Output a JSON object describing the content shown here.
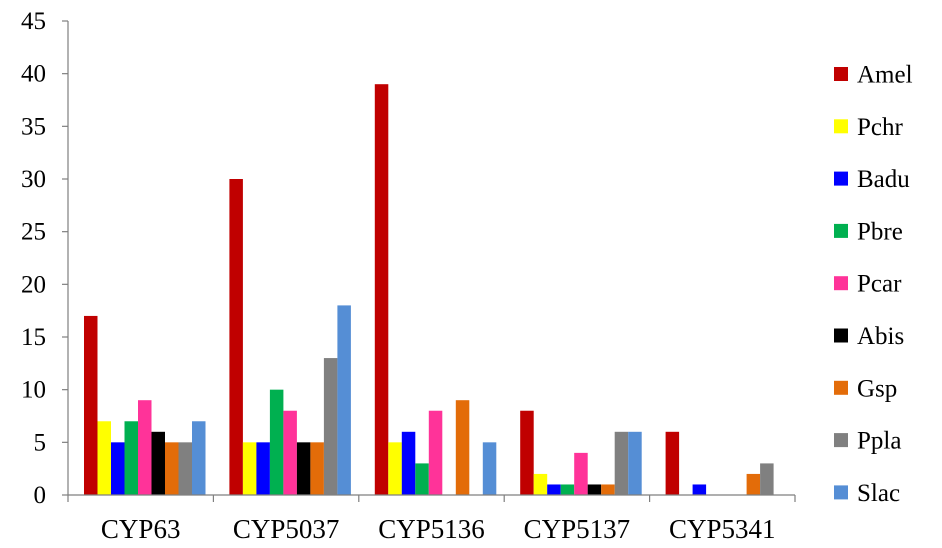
{
  "chart_data": {
    "type": "bar",
    "title": "",
    "xlabel": "",
    "ylabel": "",
    "ylim": [
      0,
      45
    ],
    "yticks": [
      0,
      5,
      10,
      15,
      20,
      25,
      30,
      35,
      40,
      45
    ],
    "grid": false,
    "legend_position": "right",
    "categories": [
      "CYP63",
      "CYP5037",
      "CYP5136",
      "CYP5137",
      "CYP5341"
    ],
    "series": [
      {
        "name": "Amel",
        "color": "#c00000",
        "values": [
          17,
          30,
          39,
          8,
          6
        ]
      },
      {
        "name": "Pchr",
        "color": "#ffff00",
        "values": [
          7,
          5,
          5,
          2,
          0
        ]
      },
      {
        "name": "Badu",
        "color": "#0000ff",
        "values": [
          5,
          5,
          6,
          1,
          1
        ]
      },
      {
        "name": "Pbre",
        "color": "#00b050",
        "values": [
          7,
          10,
          3,
          1,
          0
        ]
      },
      {
        "name": "Pcar",
        "color": "#ff3399",
        "values": [
          9,
          8,
          8,
          4,
          0
        ]
      },
      {
        "name": "Abis",
        "color": "#000000",
        "values": [
          6,
          5,
          0,
          1,
          0
        ]
      },
      {
        "name": "Gsp",
        "color": "#e36c09",
        "values": [
          5,
          5,
          9,
          1,
          2
        ]
      },
      {
        "name": "Ppla",
        "color": "#808080",
        "values": [
          5,
          13,
          0,
          6,
          3
        ]
      },
      {
        "name": "Slac",
        "color": "#558ed5",
        "values": [
          7,
          18,
          5,
          6,
          0
        ]
      }
    ]
  }
}
